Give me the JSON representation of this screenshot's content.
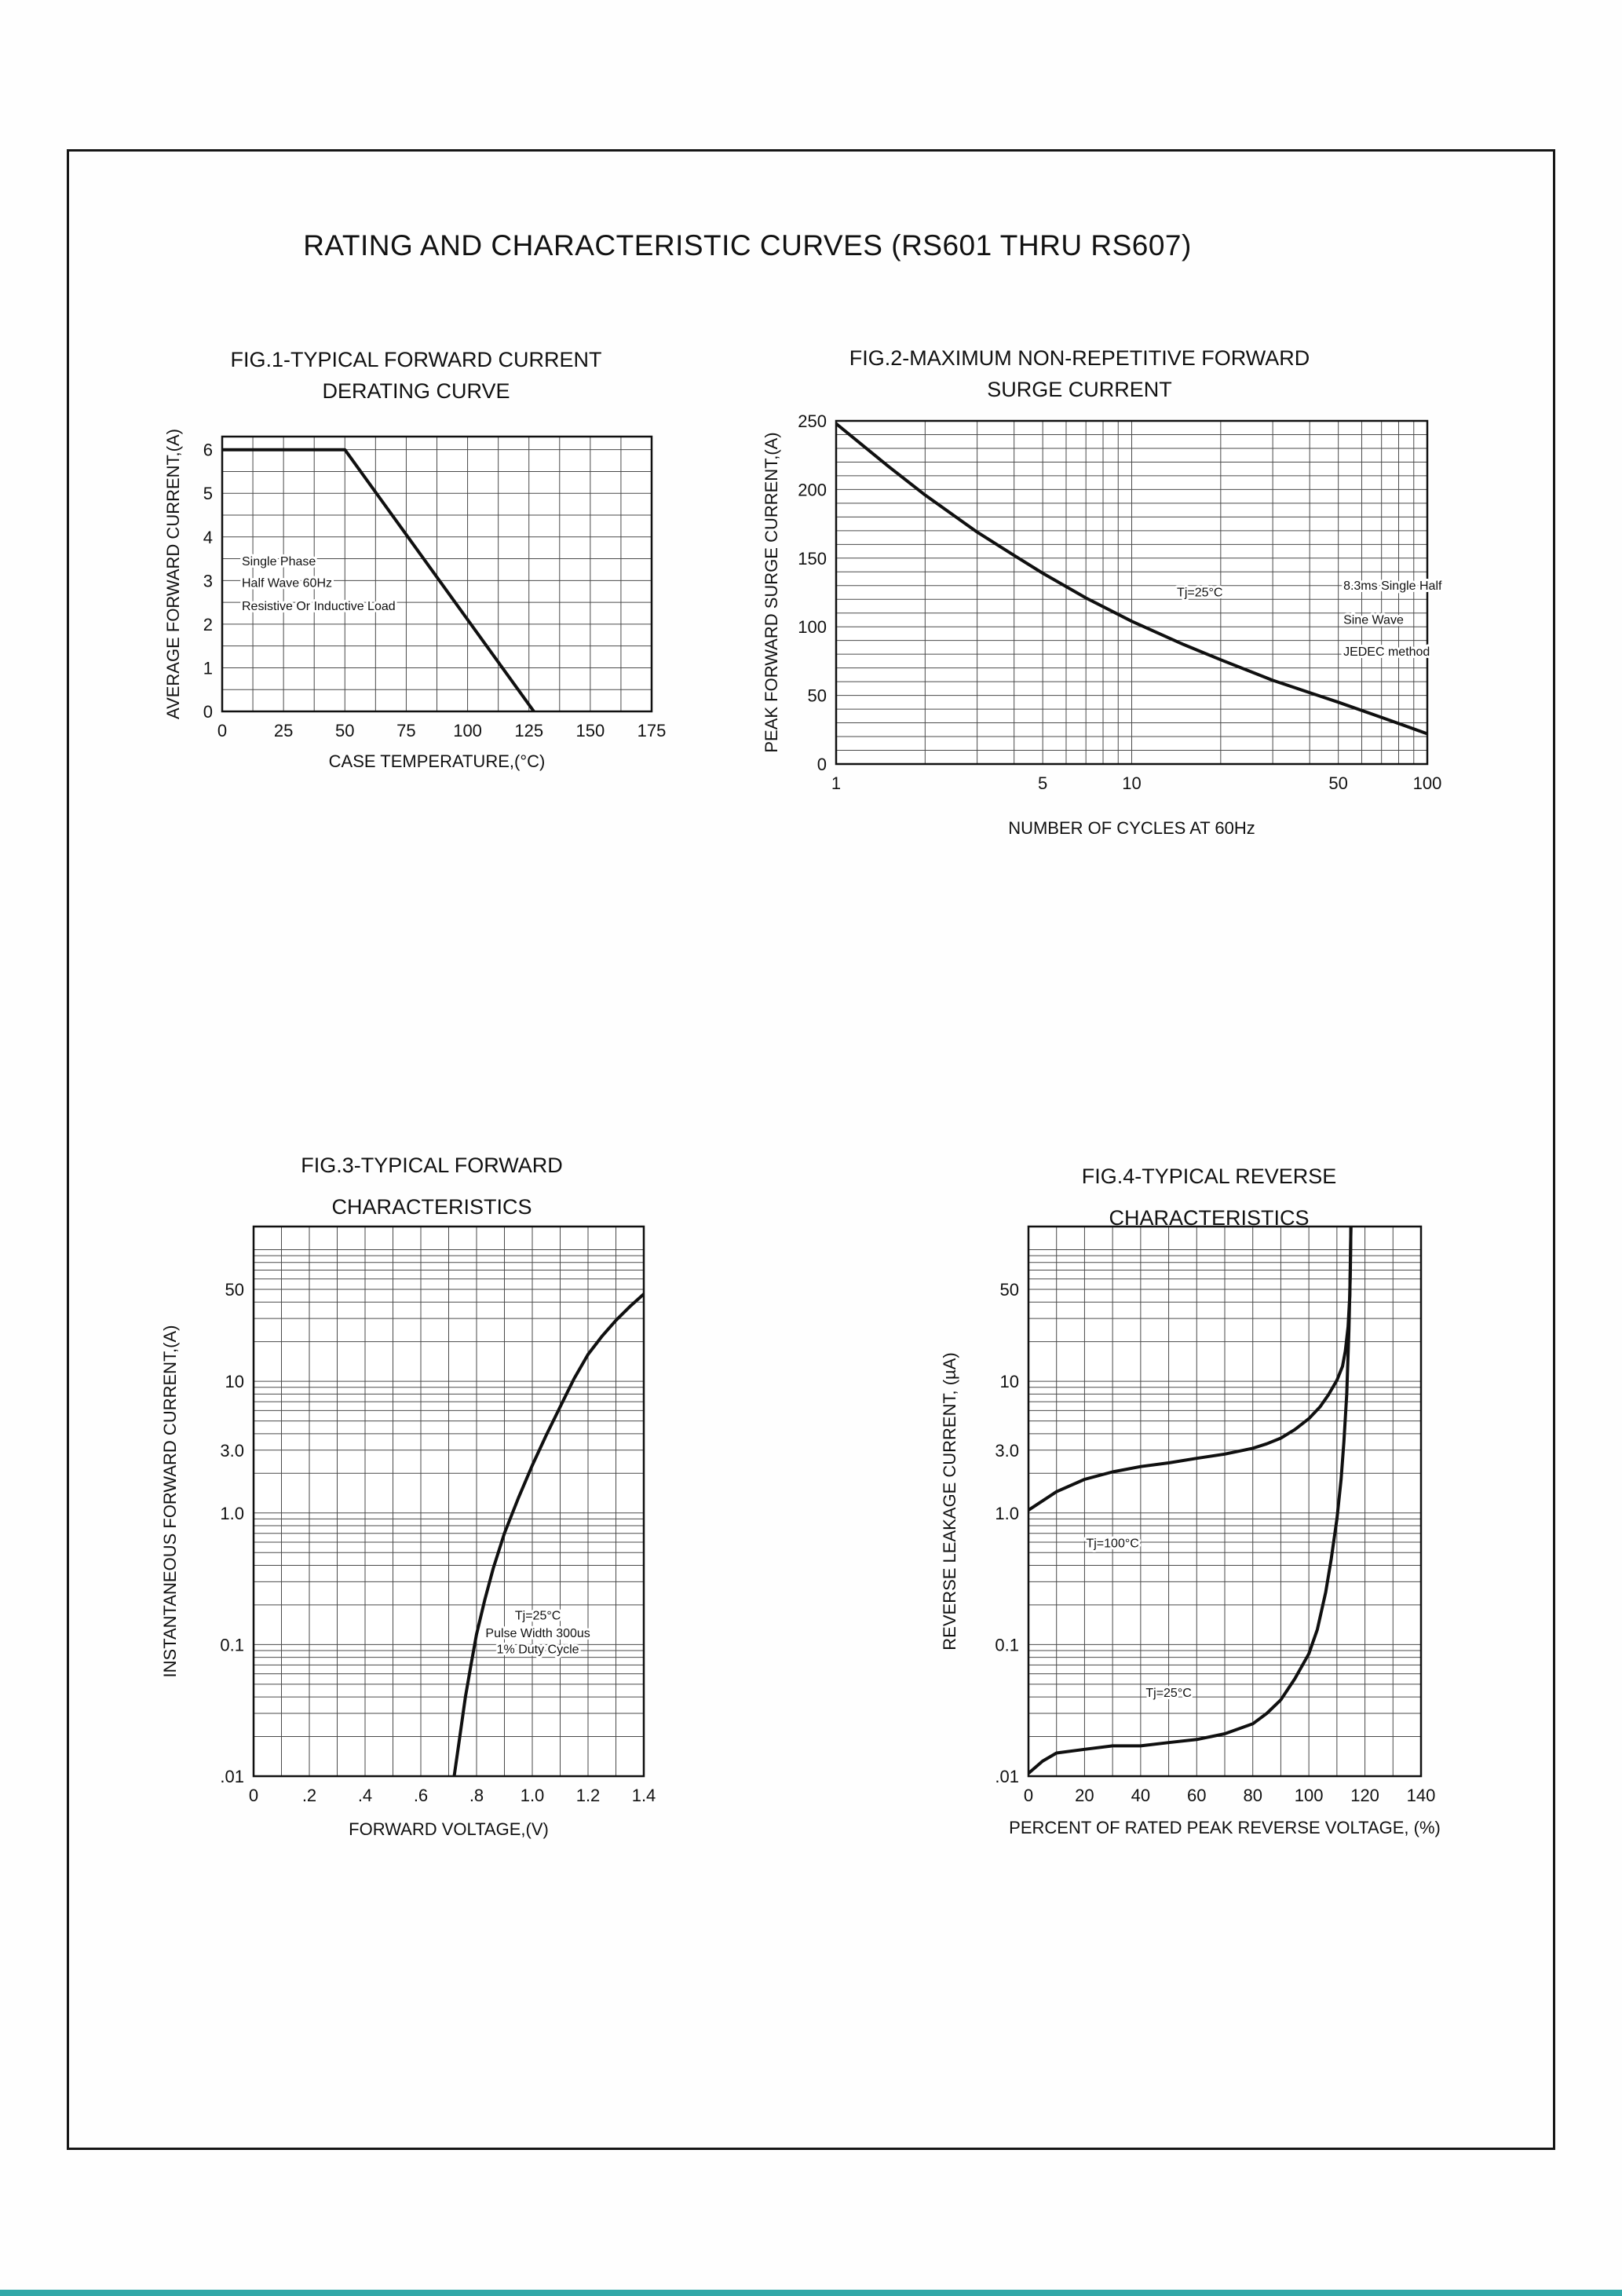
{
  "page": {
    "title": "RATING AND CHARACTERISTIC CURVES (RS601 THRU RS607)"
  },
  "footer": {
    "bar_color": "#31A8A8"
  },
  "chart_data": [
    {
      "id": "fig1",
      "type": "line",
      "title": "FIG.1-TYPICAL FORWARD CURRENT",
      "subtitle": "DERATING CURVE",
      "xlabel": "CASE TEMPERATURE,(°C)",
      "ylabel": "AVERAGE FORWARD CURRENT,(A)",
      "x_axis": {
        "type": "linear",
        "min": 0,
        "max": 175,
        "grid_step": 12.5,
        "ticks": [
          0,
          25,
          50,
          75,
          100,
          125,
          150,
          175
        ]
      },
      "y_axis": {
        "type": "linear",
        "min": 0,
        "max": 6.3,
        "grid_step": 0.5,
        "ticks": [
          0,
          1,
          2,
          3,
          4,
          5,
          6
        ]
      },
      "series": [
        {
          "name": "derating-curve",
          "points": [
            [
              0,
              6
            ],
            [
              50,
              6
            ],
            [
              127,
              0
            ]
          ]
        }
      ],
      "annotations": [
        {
          "x": 8,
          "y": 3.35,
          "text": "Single Phase",
          "anchor": "start"
        },
        {
          "x": 8,
          "y": 2.85,
          "text": "Half Wave 60Hz",
          "anchor": "start"
        },
        {
          "x": 8,
          "y": 2.32,
          "text": "Resistive Or Inductive Load",
          "anchor": "start"
        }
      ]
    },
    {
      "id": "fig2",
      "type": "line",
      "title": "FIG.2-MAXIMUM NON-REPETITIVE FORWARD",
      "subtitle": "SURGE CURRENT",
      "xlabel": "NUMBER OF CYCLES AT 60Hz",
      "ylabel": "PEAK FORWARD SURGE CURRENT,(A)",
      "x_axis": {
        "type": "log",
        "min": 1,
        "max": 100,
        "ticks": [
          1,
          5,
          10,
          50,
          100
        ]
      },
      "y_axis": {
        "type": "linear",
        "min": 0,
        "max": 250,
        "grid_step": 10,
        "ticks": [
          0,
          50,
          100,
          150,
          200,
          250
        ]
      },
      "series": [
        {
          "name": "surge-current",
          "points": [
            [
              1,
              248
            ],
            [
              1.5,
              217
            ],
            [
              2,
              196
            ],
            [
              3,
              169
            ],
            [
              4,
              152
            ],
            [
              5,
              139
            ],
            [
              7,
              121
            ],
            [
              10,
              104
            ],
            [
              15,
              87
            ],
            [
              20,
              76
            ],
            [
              30,
              61
            ],
            [
              40,
              52
            ],
            [
              50,
              45
            ],
            [
              70,
              34
            ],
            [
              100,
              22
            ]
          ]
        }
      ],
      "annotations": [
        {
          "x": 17,
          "y": 122,
          "text": "Tj=25°C",
          "anchor": "middle"
        },
        {
          "x": 52,
          "y": 127,
          "text": "8.3ms Single Half",
          "anchor": "start"
        },
        {
          "x": 52,
          "y": 102,
          "text": "Sine Wave",
          "anchor": "start"
        },
        {
          "x": 52,
          "y": 79,
          "text": "JEDEC method",
          "anchor": "start"
        }
      ]
    },
    {
      "id": "fig3",
      "type": "line",
      "title": "FIG.3-TYPICAL FORWARD",
      "subtitle": "CHARACTERISTICS",
      "xlabel": "FORWARD VOLTAGE,(V)",
      "ylabel": "INSTANTANEOUS FORWARD CURRENT,(A)",
      "x_axis": {
        "type": "linear",
        "min": 0,
        "max": 1.4,
        "grid_step": 0.1,
        "ticks": [
          {
            "v": 0,
            "label": "0"
          },
          {
            "v": 0.2,
            "label": ".2"
          },
          {
            "v": 0.4,
            "label": ".4"
          },
          {
            "v": 0.6,
            "label": ".6"
          },
          {
            "v": 0.8,
            "label": ".8"
          },
          {
            "v": 1,
            "label": "1.0"
          },
          {
            "v": 1.2,
            "label": "1.2"
          },
          {
            "v": 1.4,
            "label": "1.4"
          }
        ]
      },
      "y_axis": {
        "type": "log",
        "min": 0.01,
        "max": 150,
        "ticks": [
          {
            "v": 50,
            "label": "50"
          },
          {
            "v": 10,
            "label": "10"
          },
          {
            "v": 3,
            "label": "3.0"
          },
          {
            "v": 1,
            "label": "1.0"
          },
          {
            "v": 0.1,
            "label": "0.1"
          },
          {
            "v": 0.01,
            "label": ".01"
          }
        ]
      },
      "series": [
        {
          "name": "forward-characteristic",
          "points": [
            [
              0.72,
              0.0101
            ],
            [
              0.74,
              0.02
            ],
            [
              0.76,
              0.04
            ],
            [
              0.78,
              0.07
            ],
            [
              0.8,
              0.12
            ],
            [
              0.83,
              0.22
            ],
            [
              0.86,
              0.38
            ],
            [
              0.9,
              0.7
            ],
            [
              0.95,
              1.3
            ],
            [
              1.0,
              2.3
            ],
            [
              1.05,
              3.9
            ],
            [
              1.1,
              6.4
            ],
            [
              1.15,
              10.5
            ],
            [
              1.2,
              16
            ],
            [
              1.25,
              22
            ],
            [
              1.3,
              29
            ],
            [
              1.35,
              37
            ],
            [
              1.4,
              46
            ]
          ]
        }
      ],
      "annotations": [
        {
          "x": 1.02,
          "y": 0.155,
          "text": "Tj=25°C",
          "anchor": "middle"
        },
        {
          "x": 1.02,
          "y": 0.114,
          "text": "Pulse Width 300us",
          "anchor": "middle"
        },
        {
          "x": 1.02,
          "y": 0.086,
          "text": "1% Duty Cycle",
          "anchor": "middle"
        }
      ]
    },
    {
      "id": "fig4",
      "type": "line",
      "title": "FIG.4-TYPICAL REVERSE",
      "subtitle": "CHARACTERISTICS",
      "xlabel": "PERCENT OF RATED PEAK REVERSE VOLTAGE, (%)",
      "ylabel": "REVERSE LEAKAGE CURRENT, (µA)",
      "x_axis": {
        "type": "linear",
        "min": 0,
        "max": 140,
        "grid_step": 10,
        "ticks": [
          0,
          20,
          40,
          60,
          80,
          100,
          120,
          140
        ]
      },
      "y_axis": {
        "type": "log",
        "min": 0.01,
        "max": 150,
        "ticks": [
          {
            "v": 50,
            "label": "50"
          },
          {
            "v": 10,
            "label": "10"
          },
          {
            "v": 3,
            "label": "3.0"
          },
          {
            "v": 1,
            "label": "1.0"
          },
          {
            "v": 0.1,
            "label": "0.1"
          },
          {
            "v": 0.01,
            "label": ".01"
          }
        ]
      },
      "series": [
        {
          "name": "Tj=100C",
          "points": [
            [
              0,
              1.05
            ],
            [
              10,
              1.45
            ],
            [
              20,
              1.8
            ],
            [
              30,
              2.05
            ],
            [
              40,
              2.25
            ],
            [
              50,
              2.4
            ],
            [
              60,
              2.6
            ],
            [
              70,
              2.8
            ],
            [
              80,
              3.1
            ],
            [
              85,
              3.35
            ],
            [
              90,
              3.7
            ],
            [
              95,
              4.3
            ],
            [
              100,
              5.2
            ],
            [
              104,
              6.4
            ],
            [
              107,
              7.9
            ],
            [
              110,
              10.2
            ],
            [
              112,
              13
            ],
            [
              113,
              17
            ],
            [
              114,
              26
            ],
            [
              114.6,
              45
            ],
            [
              115,
              150
            ]
          ]
        },
        {
          "name": "Tj=25C",
          "points": [
            [
              0,
              0.0105
            ],
            [
              5,
              0.013
            ],
            [
              10,
              0.015
            ],
            [
              20,
              0.016
            ],
            [
              30,
              0.017
            ],
            [
              40,
              0.017
            ],
            [
              50,
              0.018
            ],
            [
              60,
              0.019
            ],
            [
              70,
              0.021
            ],
            [
              80,
              0.025
            ],
            [
              85,
              0.03
            ],
            [
              90,
              0.038
            ],
            [
              95,
              0.055
            ],
            [
              100,
              0.085
            ],
            [
              103,
              0.13
            ],
            [
              106,
              0.25
            ],
            [
              108,
              0.45
            ],
            [
              110,
              0.9
            ],
            [
              111.5,
              1.8
            ],
            [
              112.5,
              3.5
            ],
            [
              113.5,
              8
            ],
            [
              114.3,
              25
            ],
            [
              114.8,
              70
            ],
            [
              115,
              150
            ]
          ]
        }
      ],
      "annotations": [
        {
          "x": 30,
          "y": 0.55,
          "text": "Tj=100°C",
          "anchor": "middle"
        },
        {
          "x": 50,
          "y": 0.04,
          "text": "Tj=25°C",
          "anchor": "middle"
        }
      ]
    }
  ]
}
